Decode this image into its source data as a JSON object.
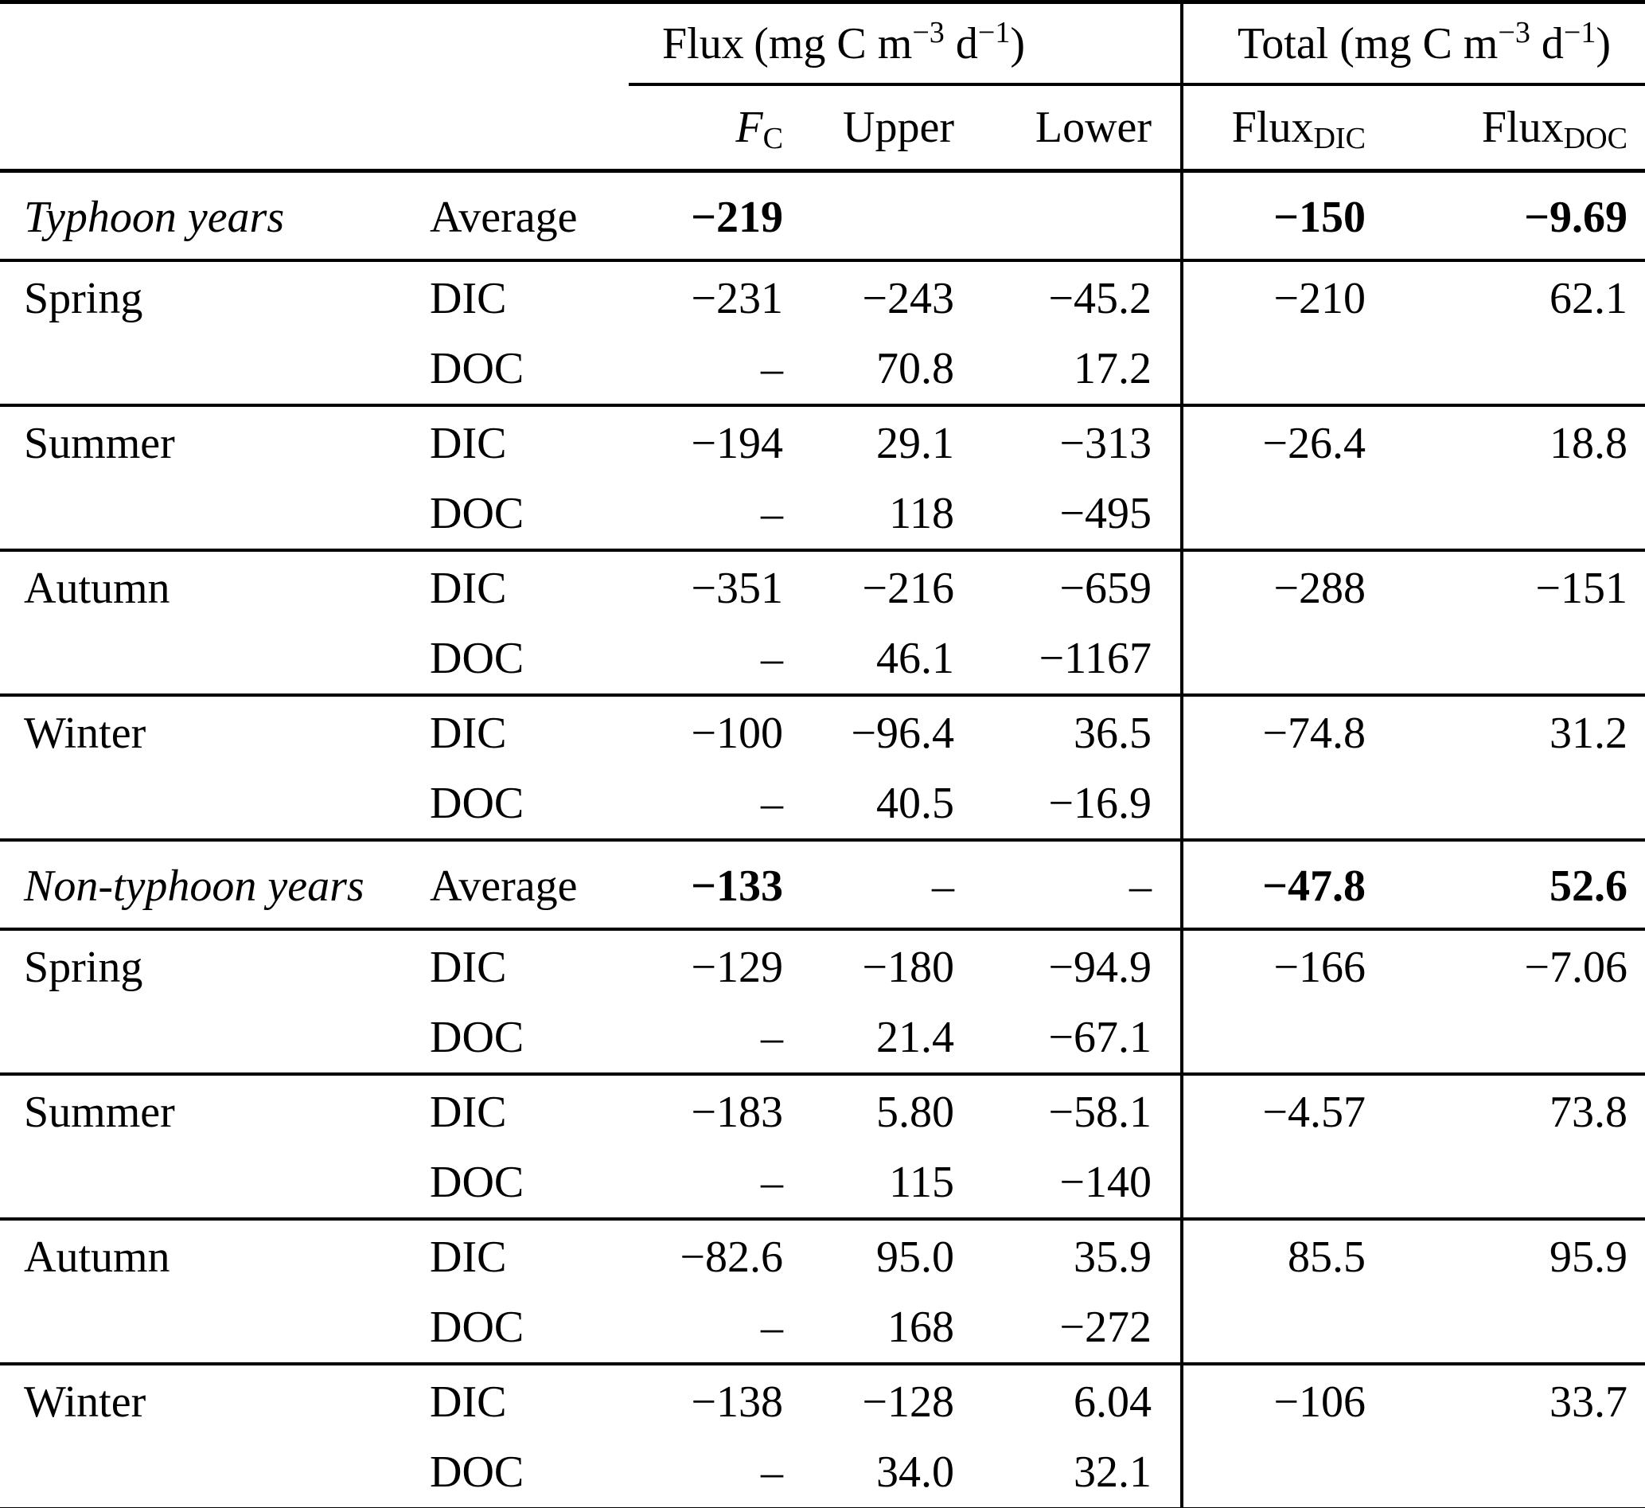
{
  "header": {
    "flux_label": "Flux",
    "unit_prefix": "(mg C m",
    "unit_exp_m": "−3",
    "unit_mid": " d",
    "unit_exp_d": "−1",
    "unit_close": ")",
    "total_label": "Total",
    "fc_base": "F",
    "fc_sub": "C",
    "upper": "Upper",
    "lower": "Lower",
    "flux_dic_base": "Flux",
    "flux_dic_sub": "DIC",
    "flux_doc_base": "Flux",
    "flux_doc_sub": "DOC"
  },
  "rows": [
    {
      "season": "Typhoon years",
      "type": "Average",
      "fc": "−219",
      "upper": "",
      "lower": "",
      "flux_dic": "−150",
      "flux_doc": "−9.69"
    },
    {
      "season": "Spring",
      "dic": {
        "label": "DIC",
        "fc": "−231",
        "upper": "−243",
        "lower": "−45.2"
      },
      "doc": {
        "label": "DOC",
        "fc": "–",
        "upper": "70.8",
        "lower": "17.2"
      },
      "flux_dic": "−210",
      "flux_doc": "62.1"
    },
    {
      "season": "Summer",
      "dic": {
        "label": "DIC",
        "fc": "−194",
        "upper": "29.1",
        "lower": "−313"
      },
      "doc": {
        "label": "DOC",
        "fc": "–",
        "upper": "118",
        "lower": "−495"
      },
      "flux_dic": "−26.4",
      "flux_doc": "18.8"
    },
    {
      "season": "Autumn",
      "dic": {
        "label": "DIC",
        "fc": "−351",
        "upper": "−216",
        "lower": "−659"
      },
      "doc": {
        "label": "DOC",
        "fc": "–",
        "upper": "46.1",
        "lower": "−1167"
      },
      "flux_dic": "−288",
      "flux_doc": "−151"
    },
    {
      "season": "Winter",
      "dic": {
        "label": "DIC",
        "fc": "−100",
        "upper": "−96.4",
        "lower": "36.5"
      },
      "doc": {
        "label": "DOC",
        "fc": "–",
        "upper": "40.5",
        "lower": "−16.9"
      },
      "flux_dic": "−74.8",
      "flux_doc": "31.2"
    },
    {
      "season": "Non-typhoon years",
      "type": "Average",
      "fc": "−133",
      "upper": "–",
      "lower": "–",
      "flux_dic": "−47.8",
      "flux_doc": "52.6"
    },
    {
      "season": "Spring",
      "dic": {
        "label": "DIC",
        "fc": "−129",
        "upper": "−180",
        "lower": "−94.9"
      },
      "doc": {
        "label": "DOC",
        "fc": "–",
        "upper": "21.4",
        "lower": "−67.1"
      },
      "flux_dic": "−166",
      "flux_doc": "−7.06"
    },
    {
      "season": "Summer",
      "dic": {
        "label": "DIC",
        "fc": "−183",
        "upper": "5.80",
        "lower": "−58.1"
      },
      "doc": {
        "label": "DOC",
        "fc": "–",
        "upper": "115",
        "lower": "−140"
      },
      "flux_dic": "−4.57",
      "flux_doc": "73.8"
    },
    {
      "season": "Autumn",
      "dic": {
        "label": "DIC",
        "fc": "−82.6",
        "upper": "95.0",
        "lower": "35.9"
      },
      "doc": {
        "label": "DOC",
        "fc": "–",
        "upper": "168",
        "lower": "−272"
      },
      "flux_dic": "85.5",
      "flux_doc": "95.9"
    },
    {
      "season": "Winter",
      "dic": {
        "label": "DIC",
        "fc": "−138",
        "upper": "−128",
        "lower": "6.04"
      },
      "doc": {
        "label": "DOC",
        "fc": "–",
        "upper": "34.0",
        "lower": "32.1"
      },
      "flux_dic": "−106",
      "flux_doc": "33.7"
    }
  ]
}
